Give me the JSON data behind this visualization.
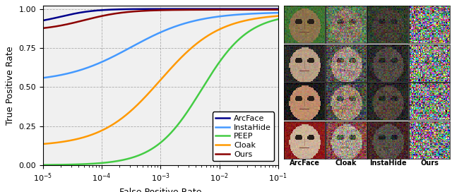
{
  "title": "",
  "xlabel": "False Positive Rate",
  "ylabel": "True Positive Rate",
  "xlim_log": [
    -5,
    -1
  ],
  "ylim": [
    0.0,
    1.02
  ],
  "yticks": [
    0.0,
    0.25,
    0.5,
    0.75,
    1.0
  ],
  "legend_entries": [
    "ArcFace",
    "InstaHide",
    "PEEP",
    "Cloak",
    "Ours"
  ],
  "line_colors": {
    "ArcFace": "#00008B",
    "InstaHide": "#4499FF",
    "PEEP": "#44CC44",
    "Cloak": "#FF9900",
    "Ours": "#8B0000"
  },
  "line_widths": {
    "ArcFace": 1.8,
    "InstaHide": 1.8,
    "PEEP": 1.8,
    "Cloak": 1.8,
    "Ours": 1.8
  },
  "col_labels": [
    "ArcFace",
    "Cloak",
    "InstaHide",
    "Ours"
  ],
  "label_fontsize": 7,
  "axis_fontsize": 9,
  "tick_fontsize": 8,
  "legend_fontsize": 8,
  "figsize": [
    6.4,
    2.72
  ],
  "dpi": 100,
  "face_colors_row": [
    {
      "skin": [
        0.55,
        0.45,
        0.3
      ],
      "bg": [
        0.25,
        0.45,
        0.2
      ]
    },
    {
      "skin": [
        0.72,
        0.62,
        0.52
      ],
      "bg": [
        0.15,
        0.15,
        0.15
      ]
    },
    {
      "skin": [
        0.75,
        0.55,
        0.42
      ],
      "bg": [
        0.1,
        0.1,
        0.1
      ]
    },
    {
      "skin": [
        0.8,
        0.7,
        0.6
      ],
      "bg": [
        0.55,
        0.1,
        0.1
      ]
    }
  ]
}
